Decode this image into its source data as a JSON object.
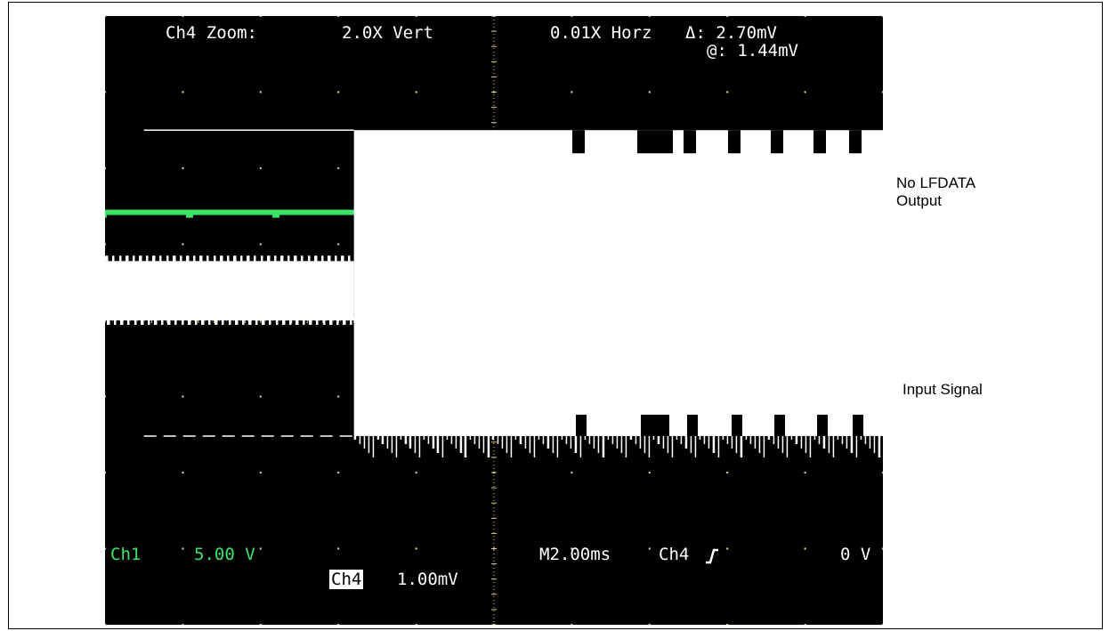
{
  "colors": {
    "background": "#000000",
    "graticule": "#d9c98a",
    "ch1_trace": "#3ee46a",
    "ch4_trace": "#ffffff",
    "ch1_text": "#3ee46a",
    "osd_text": "#ffffff",
    "page": "#ffffff",
    "annotation": "#000000"
  },
  "osd": {
    "zoom_label": "Ch4 Zoom:",
    "vert_zoom": "2.0X Vert",
    "horz_zoom": "0.01X Horz",
    "delta_label": "Δ: 2.70mV",
    "at_label": "@: 1.44mV",
    "ch1_label": "Ch1",
    "ch1_scale": "5.00 V",
    "ch4_label": "Ch4",
    "ch4_scale": "1.00mV",
    "timebase": "M2.00ms",
    "trigger_source": "Ch4",
    "trigger_slope_icon": "rising-edge-icon",
    "trigger_level": "0 V"
  },
  "annotations": {
    "lfdata_line1": "No LFDATA",
    "lfdata_line2": "Output",
    "input_signal": "Input Signal"
  },
  "chart_data": {
    "type": "line",
    "grid": true,
    "divisions": {
      "x": 10,
      "y": 8
    },
    "series": [
      {
        "name": "Ch1",
        "description_value": "flat",
        "y_div": [
          5.42,
          5.42
        ],
        "x_div": [
          0,
          10
        ]
      },
      {
        "name": "Ch4",
        "x_div": [
          0,
          3.2,
          3.2,
          10
        ],
        "upper_div": [
          4.78,
          4.78,
          6.5,
          6.5
        ],
        "lower_div": [
          4.0,
          4.0,
          2.48,
          2.48
        ],
        "pre_burst_peak_div": 6.5,
        "pre_burst_trough_div": 2.48
      }
    ]
  }
}
